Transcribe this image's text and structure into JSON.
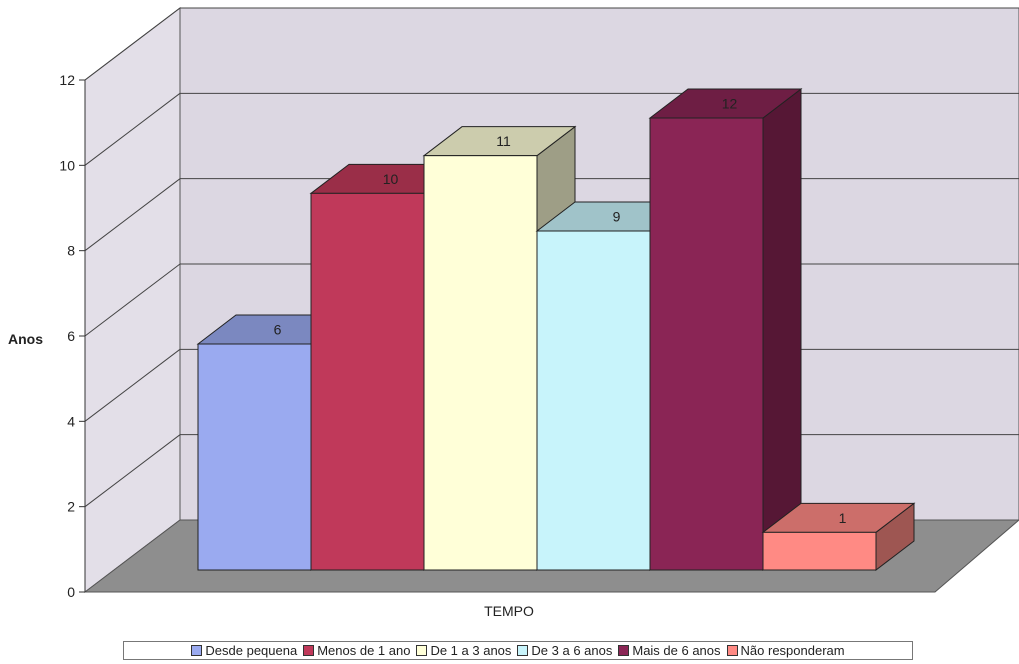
{
  "chart_data": {
    "type": "bar",
    "categories": [
      "Desde pequena",
      "Menos de 1 ano",
      "De 1 a 3 anos",
      "De 3 a 6 anos",
      "Mais de 6 anos",
      "Não responderam"
    ],
    "values": [
      6,
      10,
      11,
      9,
      12,
      1
    ],
    "data_labels": [
      "6",
      "10",
      "11",
      "9",
      "12",
      "1"
    ],
    "colors": [
      "#9aaaf0",
      "#c0395a",
      "#ffffd8",
      "#c8f4fb",
      "#8a2555",
      "#ff8a84"
    ],
    "xlabel": "TEMPO",
    "ylabel": "Anos",
    "ylim": [
      0,
      12
    ],
    "yticks": [
      "0",
      "2",
      "4",
      "6",
      "8",
      "10",
      "12"
    ],
    "grid": true,
    "three_d": true,
    "legend_position": "bottom"
  }
}
